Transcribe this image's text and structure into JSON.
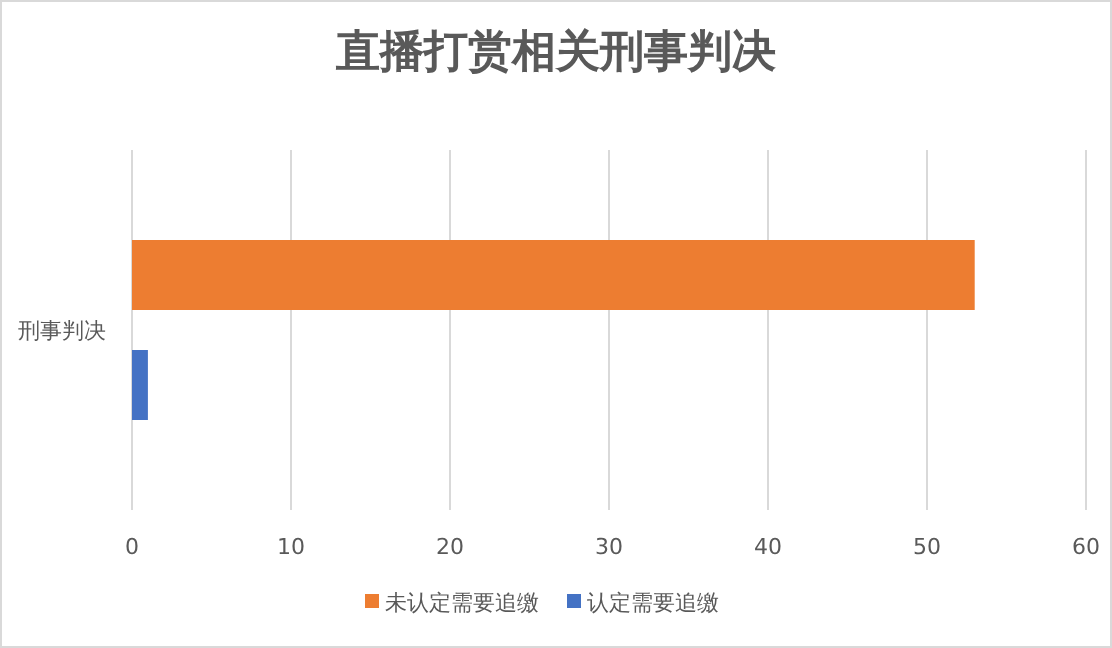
{
  "chart_data": {
    "type": "bar",
    "orientation": "horizontal",
    "title": "直播打赏相关刑事判决",
    "categories": [
      "刑事判决"
    ],
    "series": [
      {
        "name": "未认定需要追缴",
        "color": "#ed7d31",
        "values": [
          53
        ]
      },
      {
        "name": "认定需要追缴",
        "color": "#4472c4",
        "values": [
          1
        ]
      }
    ],
    "xlim": [
      0,
      60
    ],
    "xticks": [
      0,
      10,
      20,
      30,
      40,
      50,
      60
    ],
    "grid": "x",
    "legend": "bottom"
  }
}
